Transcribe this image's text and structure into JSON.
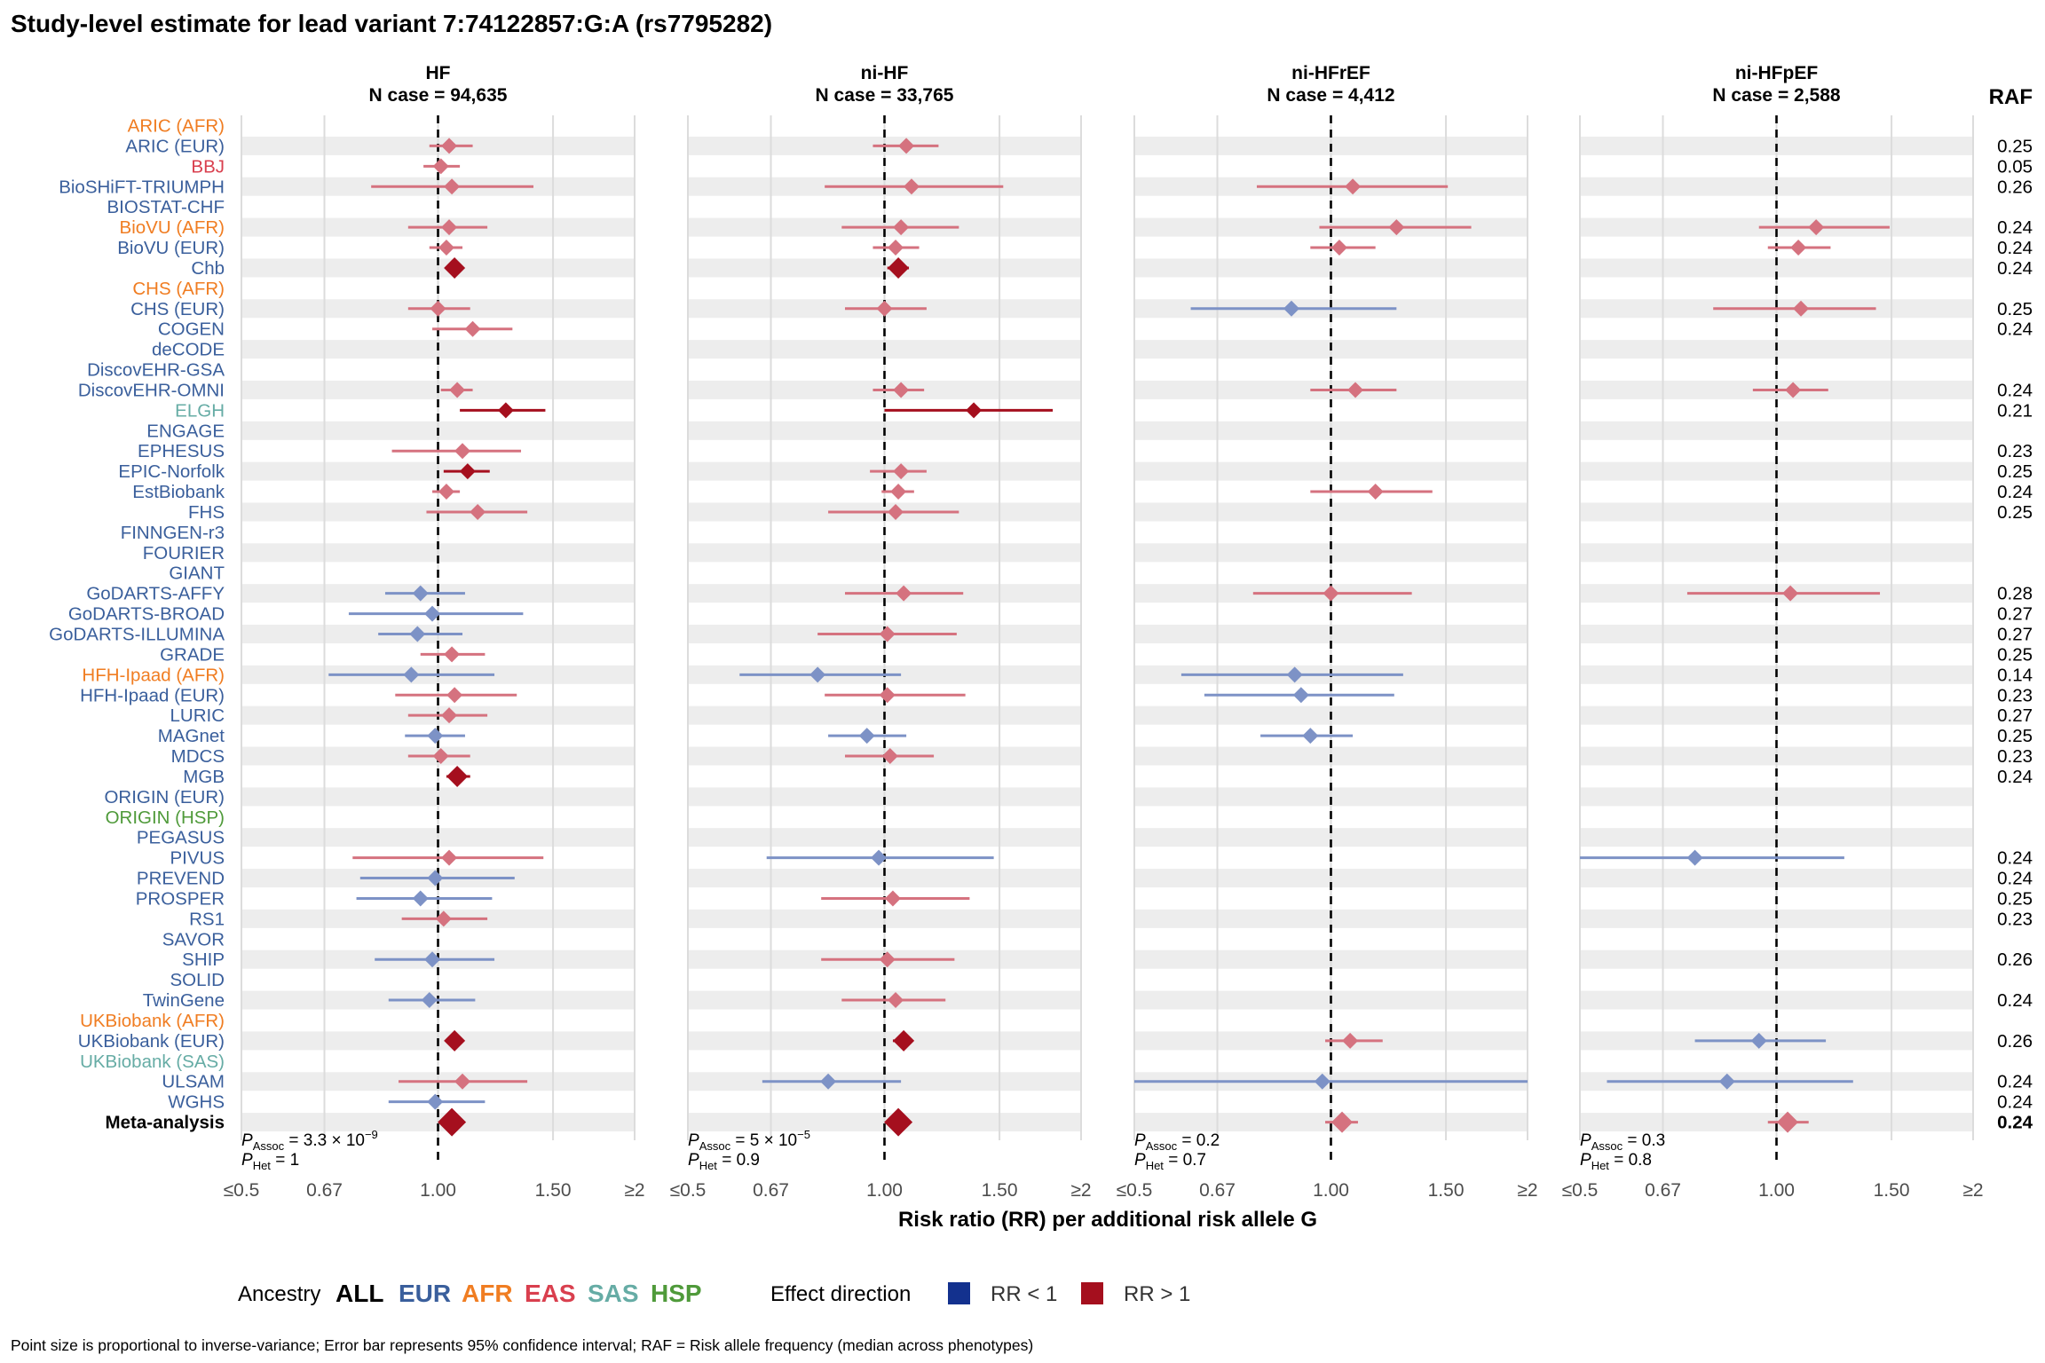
{
  "title": "Study-level estimate for lead variant 7:74122857:G:A (rs7795282)",
  "raf_header": "RAF",
  "x_axis_label": "Risk ratio (RR) per additional risk allele G",
  "footnote": "Point size is proportional to inverse-variance; Error bar represents 95% confidence interval; RAF = Risk allele frequency (median across phenotypes)",
  "legend": {
    "ancestry_title": "Ancestry",
    "ancestry_items": [
      {
        "label": "ALL",
        "color": "#000000"
      },
      {
        "label": "EUR",
        "color": "#3a5f9c"
      },
      {
        "label": "AFR",
        "color": "#f07d22"
      },
      {
        "label": "EAS",
        "color": "#d93f4e"
      },
      {
        "label": "SAS",
        "color": "#66aca5"
      },
      {
        "label": "HSP",
        "color": "#4f9a3a"
      }
    ],
    "effect_title": "Effect direction",
    "effect_items": [
      {
        "label": "RR < 1",
        "color": "#13318e"
      },
      {
        "label": "RR > 1",
        "color": "#a50f1e"
      }
    ]
  },
  "colors": {
    "EUR": "#3a5f9c",
    "AFR": "#f07d22",
    "EAS": "#d93f4e",
    "SAS": "#66aca5",
    "HSP": "#4f9a3a",
    "ALL": "#000000",
    "rr_less": "#7d92c6",
    "rr_greater": "#d5727f",
    "rr_greater_strong": "#a50f1e",
    "band": "#ededed",
    "grid": "#dcdcdc"
  },
  "chart_data": {
    "type": "forest",
    "x_ticks": [
      {
        "value": 0.5,
        "label": "≤0.5"
      },
      {
        "value": 0.67,
        "label": "0.67"
      },
      {
        "value": 1.0,
        "label": "1.00"
      },
      {
        "value": 1.5,
        "label": "1.50"
      },
      {
        "value": 2.0,
        "label": "≥2"
      }
    ],
    "x_scale": "log",
    "xlim": [
      0.5,
      2.0
    ],
    "reference_line": 1.0,
    "studies": [
      {
        "name": "ARIC (AFR)",
        "ancestry": "AFR",
        "raf": ""
      },
      {
        "name": "ARIC (EUR)",
        "ancestry": "EUR",
        "raf": "0.25"
      },
      {
        "name": "BBJ",
        "ancestry": "EAS",
        "raf": "0.05"
      },
      {
        "name": "BioSHiFT-TRIUMPH",
        "ancestry": "EUR",
        "raf": "0.26"
      },
      {
        "name": "BIOSTAT-CHF",
        "ancestry": "EUR",
        "raf": ""
      },
      {
        "name": "BioVU (AFR)",
        "ancestry": "AFR",
        "raf": "0.24"
      },
      {
        "name": "BioVU (EUR)",
        "ancestry": "EUR",
        "raf": "0.24"
      },
      {
        "name": "Chb",
        "ancestry": "EUR",
        "raf": "0.24"
      },
      {
        "name": "CHS (AFR)",
        "ancestry": "AFR",
        "raf": ""
      },
      {
        "name": "CHS (EUR)",
        "ancestry": "EUR",
        "raf": "0.25"
      },
      {
        "name": "COGEN",
        "ancestry": "EUR",
        "raf": "0.24"
      },
      {
        "name": "deCODE",
        "ancestry": "EUR",
        "raf": ""
      },
      {
        "name": "DiscovEHR-GSA",
        "ancestry": "EUR",
        "raf": ""
      },
      {
        "name": "DiscovEHR-OMNI",
        "ancestry": "EUR",
        "raf": "0.24"
      },
      {
        "name": "ELGH",
        "ancestry": "SAS",
        "raf": "0.21"
      },
      {
        "name": "ENGAGE",
        "ancestry": "EUR",
        "raf": ""
      },
      {
        "name": "EPHESUS",
        "ancestry": "EUR",
        "raf": "0.23"
      },
      {
        "name": "EPIC-Norfolk",
        "ancestry": "EUR",
        "raf": "0.25"
      },
      {
        "name": "EstBiobank",
        "ancestry": "EUR",
        "raf": "0.24"
      },
      {
        "name": "FHS",
        "ancestry": "EUR",
        "raf": "0.25"
      },
      {
        "name": "FINNGEN-r3",
        "ancestry": "EUR",
        "raf": ""
      },
      {
        "name": "FOURIER",
        "ancestry": "EUR",
        "raf": ""
      },
      {
        "name": "GIANT",
        "ancestry": "EUR",
        "raf": ""
      },
      {
        "name": "GoDARTS-AFFY",
        "ancestry": "EUR",
        "raf": "0.28"
      },
      {
        "name": "GoDARTS-BROAD",
        "ancestry": "EUR",
        "raf": "0.27"
      },
      {
        "name": "GoDARTS-ILLUMINA",
        "ancestry": "EUR",
        "raf": "0.27"
      },
      {
        "name": "GRADE",
        "ancestry": "EUR",
        "raf": "0.25"
      },
      {
        "name": "HFH-Ipaad (AFR)",
        "ancestry": "AFR",
        "raf": "0.14"
      },
      {
        "name": "HFH-Ipaad (EUR)",
        "ancestry": "EUR",
        "raf": "0.23"
      },
      {
        "name": "LURIC",
        "ancestry": "EUR",
        "raf": "0.27"
      },
      {
        "name": "MAGnet",
        "ancestry": "EUR",
        "raf": "0.25"
      },
      {
        "name": "MDCS",
        "ancestry": "EUR",
        "raf": "0.23"
      },
      {
        "name": "MGB",
        "ancestry": "EUR",
        "raf": "0.24"
      },
      {
        "name": "ORIGIN (EUR)",
        "ancestry": "EUR",
        "raf": ""
      },
      {
        "name": "ORIGIN (HSP)",
        "ancestry": "HSP",
        "raf": ""
      },
      {
        "name": "PEGASUS",
        "ancestry": "EUR",
        "raf": ""
      },
      {
        "name": "PIVUS",
        "ancestry": "EUR",
        "raf": "0.24"
      },
      {
        "name": "PREVEND",
        "ancestry": "EUR",
        "raf": "0.24"
      },
      {
        "name": "PROSPER",
        "ancestry": "EUR",
        "raf": "0.25"
      },
      {
        "name": "RS1",
        "ancestry": "EUR",
        "raf": "0.23"
      },
      {
        "name": "SAVOR",
        "ancestry": "EUR",
        "raf": ""
      },
      {
        "name": "SHIP",
        "ancestry": "EUR",
        "raf": "0.26"
      },
      {
        "name": "SOLID",
        "ancestry": "EUR",
        "raf": ""
      },
      {
        "name": "TwinGene",
        "ancestry": "EUR",
        "raf": "0.24"
      },
      {
        "name": "UKBiobank (AFR)",
        "ancestry": "AFR",
        "raf": ""
      },
      {
        "name": "UKBiobank (EUR)",
        "ancestry": "EUR",
        "raf": "0.26"
      },
      {
        "name": "UKBiobank (SAS)",
        "ancestry": "SAS",
        "raf": ""
      },
      {
        "name": "ULSAM",
        "ancestry": "EUR",
        "raf": "0.24"
      },
      {
        "name": "WGHS",
        "ancestry": "EUR",
        "raf": "0.24"
      },
      {
        "name": "Meta-analysis",
        "ancestry": "ALL",
        "raf": "0.24"
      }
    ],
    "panels": [
      {
        "title": "HF",
        "subtitle": "N case = 94,635",
        "p_assoc": "3.3 × 10",
        "p_assoc_exp": "−9",
        "p_het": "1",
        "estimates": [
          {
            "i": 1,
            "rr": 1.04,
            "lo": 0.97,
            "hi": 1.13,
            "size": 1
          },
          {
            "i": 2,
            "rr": 1.01,
            "lo": 0.95,
            "hi": 1.08,
            "size": 1
          },
          {
            "i": 3,
            "rr": 1.05,
            "lo": 0.79,
            "hi": 1.4,
            "size": 1
          },
          {
            "i": 5,
            "rr": 1.04,
            "lo": 0.9,
            "hi": 1.19,
            "size": 1
          },
          {
            "i": 6,
            "rr": 1.03,
            "lo": 0.97,
            "hi": 1.09,
            "size": 1
          },
          {
            "i": 7,
            "rr": 1.06,
            "lo": 1.03,
            "hi": 1.09,
            "size": 2,
            "strong": true
          },
          {
            "i": 9,
            "rr": 1.0,
            "lo": 0.9,
            "hi": 1.12,
            "size": 1
          },
          {
            "i": 10,
            "rr": 1.13,
            "lo": 0.98,
            "hi": 1.3,
            "size": 1
          },
          {
            "i": 13,
            "rr": 1.07,
            "lo": 1.01,
            "hi": 1.13,
            "size": 1
          },
          {
            "i": 14,
            "rr": 1.27,
            "lo": 1.08,
            "hi": 1.46,
            "size": 1,
            "strong": true
          },
          {
            "i": 16,
            "rr": 1.09,
            "lo": 0.85,
            "hi": 1.34,
            "size": 1
          },
          {
            "i": 17,
            "rr": 1.11,
            "lo": 1.02,
            "hi": 1.2,
            "size": 1,
            "strong": true
          },
          {
            "i": 18,
            "rr": 1.03,
            "lo": 0.98,
            "hi": 1.08,
            "size": 1
          },
          {
            "i": 19,
            "rr": 1.15,
            "lo": 0.96,
            "hi": 1.37,
            "size": 1
          },
          {
            "i": 23,
            "rr": 0.94,
            "lo": 0.83,
            "hi": 1.1,
            "size": 1
          },
          {
            "i": 24,
            "rr": 0.98,
            "lo": 0.73,
            "hi": 1.35,
            "size": 1
          },
          {
            "i": 25,
            "rr": 0.93,
            "lo": 0.81,
            "hi": 1.09,
            "size": 1
          },
          {
            "i": 26,
            "rr": 1.05,
            "lo": 0.94,
            "hi": 1.18,
            "size": 1
          },
          {
            "i": 27,
            "rr": 0.91,
            "lo": 0.68,
            "hi": 1.22,
            "size": 1
          },
          {
            "i": 28,
            "rr": 1.06,
            "lo": 0.86,
            "hi": 1.32,
            "size": 1
          },
          {
            "i": 29,
            "rr": 1.04,
            "lo": 0.9,
            "hi": 1.19,
            "size": 1
          },
          {
            "i": 30,
            "rr": 0.99,
            "lo": 0.89,
            "hi": 1.1,
            "size": 1
          },
          {
            "i": 31,
            "rr": 1.01,
            "lo": 0.9,
            "hi": 1.12,
            "size": 1
          },
          {
            "i": 32,
            "rr": 1.07,
            "lo": 1.03,
            "hi": 1.12,
            "size": 2,
            "strong": true
          },
          {
            "i": 36,
            "rr": 1.04,
            "lo": 0.74,
            "hi": 1.45,
            "size": 1
          },
          {
            "i": 37,
            "rr": 0.99,
            "lo": 0.76,
            "hi": 1.31,
            "size": 1
          },
          {
            "i": 38,
            "rr": 0.94,
            "lo": 0.75,
            "hi": 1.21,
            "size": 1
          },
          {
            "i": 39,
            "rr": 1.02,
            "lo": 0.88,
            "hi": 1.19,
            "size": 1
          },
          {
            "i": 41,
            "rr": 0.98,
            "lo": 0.8,
            "hi": 1.22,
            "size": 1
          },
          {
            "i": 43,
            "rr": 0.97,
            "lo": 0.84,
            "hi": 1.14,
            "size": 1
          },
          {
            "i": 45,
            "rr": 1.06,
            "lo": 1.04,
            "hi": 1.08,
            "size": 2,
            "strong": true
          },
          {
            "i": 47,
            "rr": 1.09,
            "lo": 0.87,
            "hi": 1.37,
            "size": 1
          },
          {
            "i": 48,
            "rr": 0.99,
            "lo": 0.84,
            "hi": 1.18,
            "size": 1
          },
          {
            "i": 49,
            "rr": 1.05,
            "lo": 1.03,
            "hi": 1.07,
            "size": 3,
            "strong": true
          }
        ]
      },
      {
        "title": "ni-HF",
        "subtitle": "N case = 33,765",
        "p_assoc": "5 × 10",
        "p_assoc_exp": "−5",
        "p_het": "0.9",
        "estimates": [
          {
            "i": 1,
            "rr": 1.08,
            "lo": 0.96,
            "hi": 1.21,
            "size": 1
          },
          {
            "i": 3,
            "rr": 1.1,
            "lo": 0.81,
            "hi": 1.52,
            "size": 1
          },
          {
            "i": 5,
            "rr": 1.06,
            "lo": 0.86,
            "hi": 1.3,
            "size": 1
          },
          {
            "i": 6,
            "rr": 1.04,
            "lo": 0.96,
            "hi": 1.13,
            "size": 1
          },
          {
            "i": 7,
            "rr": 1.05,
            "lo": 1.01,
            "hi": 1.09,
            "size": 2,
            "strong": true
          },
          {
            "i": 9,
            "rr": 1.0,
            "lo": 0.87,
            "hi": 1.16,
            "size": 1
          },
          {
            "i": 13,
            "rr": 1.06,
            "lo": 0.96,
            "hi": 1.15,
            "size": 1
          },
          {
            "i": 14,
            "rr": 1.37,
            "lo": 1.0,
            "hi": 1.81,
            "size": 1,
            "strong": true
          },
          {
            "i": 17,
            "rr": 1.06,
            "lo": 0.95,
            "hi": 1.16,
            "size": 1
          },
          {
            "i": 18,
            "rr": 1.05,
            "lo": 0.99,
            "hi": 1.11,
            "size": 1
          },
          {
            "i": 19,
            "rr": 1.04,
            "lo": 0.82,
            "hi": 1.3,
            "size": 1
          },
          {
            "i": 23,
            "rr": 1.07,
            "lo": 0.87,
            "hi": 1.32,
            "size": 1
          },
          {
            "i": 25,
            "rr": 1.01,
            "lo": 0.79,
            "hi": 1.29,
            "size": 1
          },
          {
            "i": 27,
            "rr": 0.79,
            "lo": 0.6,
            "hi": 1.06,
            "size": 1
          },
          {
            "i": 28,
            "rr": 1.01,
            "lo": 0.81,
            "hi": 1.33,
            "size": 1
          },
          {
            "i": 30,
            "rr": 0.94,
            "lo": 0.82,
            "hi": 1.08,
            "size": 1
          },
          {
            "i": 31,
            "rr": 1.02,
            "lo": 0.87,
            "hi": 1.19,
            "size": 1
          },
          {
            "i": 36,
            "rr": 0.98,
            "lo": 0.66,
            "hi": 1.47,
            "size": 1
          },
          {
            "i": 38,
            "rr": 1.03,
            "lo": 0.8,
            "hi": 1.35,
            "size": 1
          },
          {
            "i": 41,
            "rr": 1.01,
            "lo": 0.8,
            "hi": 1.28,
            "size": 1
          },
          {
            "i": 43,
            "rr": 1.04,
            "lo": 0.86,
            "hi": 1.24,
            "size": 1
          },
          {
            "i": 45,
            "rr": 1.07,
            "lo": 1.03,
            "hi": 1.1,
            "size": 2,
            "strong": true
          },
          {
            "i": 47,
            "rr": 0.82,
            "lo": 0.65,
            "hi": 1.06,
            "size": 1
          },
          {
            "i": 49,
            "rr": 1.05,
            "lo": 1.02,
            "hi": 1.08,
            "size": 3,
            "strong": true
          }
        ]
      },
      {
        "title": "ni-HFrEF",
        "subtitle": "N case = 4,412",
        "p_assoc": "0.2",
        "p_assoc_exp": "",
        "p_het": "0.7",
        "estimates": [
          {
            "i": 3,
            "rr": 1.08,
            "lo": 0.77,
            "hi": 1.51,
            "size": 1
          },
          {
            "i": 5,
            "rr": 1.26,
            "lo": 0.96,
            "hi": 1.64,
            "size": 1
          },
          {
            "i": 6,
            "rr": 1.03,
            "lo": 0.93,
            "hi": 1.17,
            "size": 1
          },
          {
            "i": 9,
            "rr": 0.87,
            "lo": 0.61,
            "hi": 1.26,
            "size": 1
          },
          {
            "i": 13,
            "rr": 1.09,
            "lo": 0.93,
            "hi": 1.26,
            "size": 1
          },
          {
            "i": 18,
            "rr": 1.17,
            "lo": 0.93,
            "hi": 1.43,
            "size": 1
          },
          {
            "i": 23,
            "rr": 1.0,
            "lo": 0.76,
            "hi": 1.33,
            "size": 1
          },
          {
            "i": 27,
            "rr": 0.88,
            "lo": 0.59,
            "hi": 1.29,
            "size": 1
          },
          {
            "i": 28,
            "rr": 0.9,
            "lo": 0.64,
            "hi": 1.25,
            "size": 1
          },
          {
            "i": 30,
            "rr": 0.93,
            "lo": 0.78,
            "hi": 1.08,
            "size": 1
          },
          {
            "i": 45,
            "rr": 1.07,
            "lo": 0.98,
            "hi": 1.2,
            "size": 1
          },
          {
            "i": 47,
            "rr": 0.97,
            "lo": 0.5,
            "hi": 2.0,
            "size": 1
          },
          {
            "i": 49,
            "rr": 1.04,
            "lo": 0.98,
            "hi": 1.1,
            "size": 2
          }
        ]
      },
      {
        "title": "ni-HFpEF",
        "subtitle": "N case = 2,588",
        "p_assoc": "0.3",
        "p_assoc_exp": "",
        "p_het": "0.8",
        "estimates": [
          {
            "i": 5,
            "rr": 1.15,
            "lo": 0.94,
            "hi": 1.49,
            "size": 1
          },
          {
            "i": 6,
            "rr": 1.08,
            "lo": 0.97,
            "hi": 1.21,
            "size": 1
          },
          {
            "i": 9,
            "rr": 1.09,
            "lo": 0.8,
            "hi": 1.42,
            "size": 1
          },
          {
            "i": 13,
            "rr": 1.06,
            "lo": 0.92,
            "hi": 1.2,
            "size": 1
          },
          {
            "i": 23,
            "rr": 1.05,
            "lo": 0.73,
            "hi": 1.44,
            "size": 1
          },
          {
            "i": 36,
            "rr": 0.75,
            "lo": 0.5,
            "hi": 1.27,
            "size": 1
          },
          {
            "i": 45,
            "rr": 0.94,
            "lo": 0.75,
            "hi": 1.19,
            "size": 1
          },
          {
            "i": 47,
            "rr": 0.84,
            "lo": 0.55,
            "hi": 1.31,
            "size": 1
          },
          {
            "i": 49,
            "rr": 1.04,
            "lo": 0.97,
            "hi": 1.12,
            "size": 2
          }
        ]
      }
    ]
  }
}
